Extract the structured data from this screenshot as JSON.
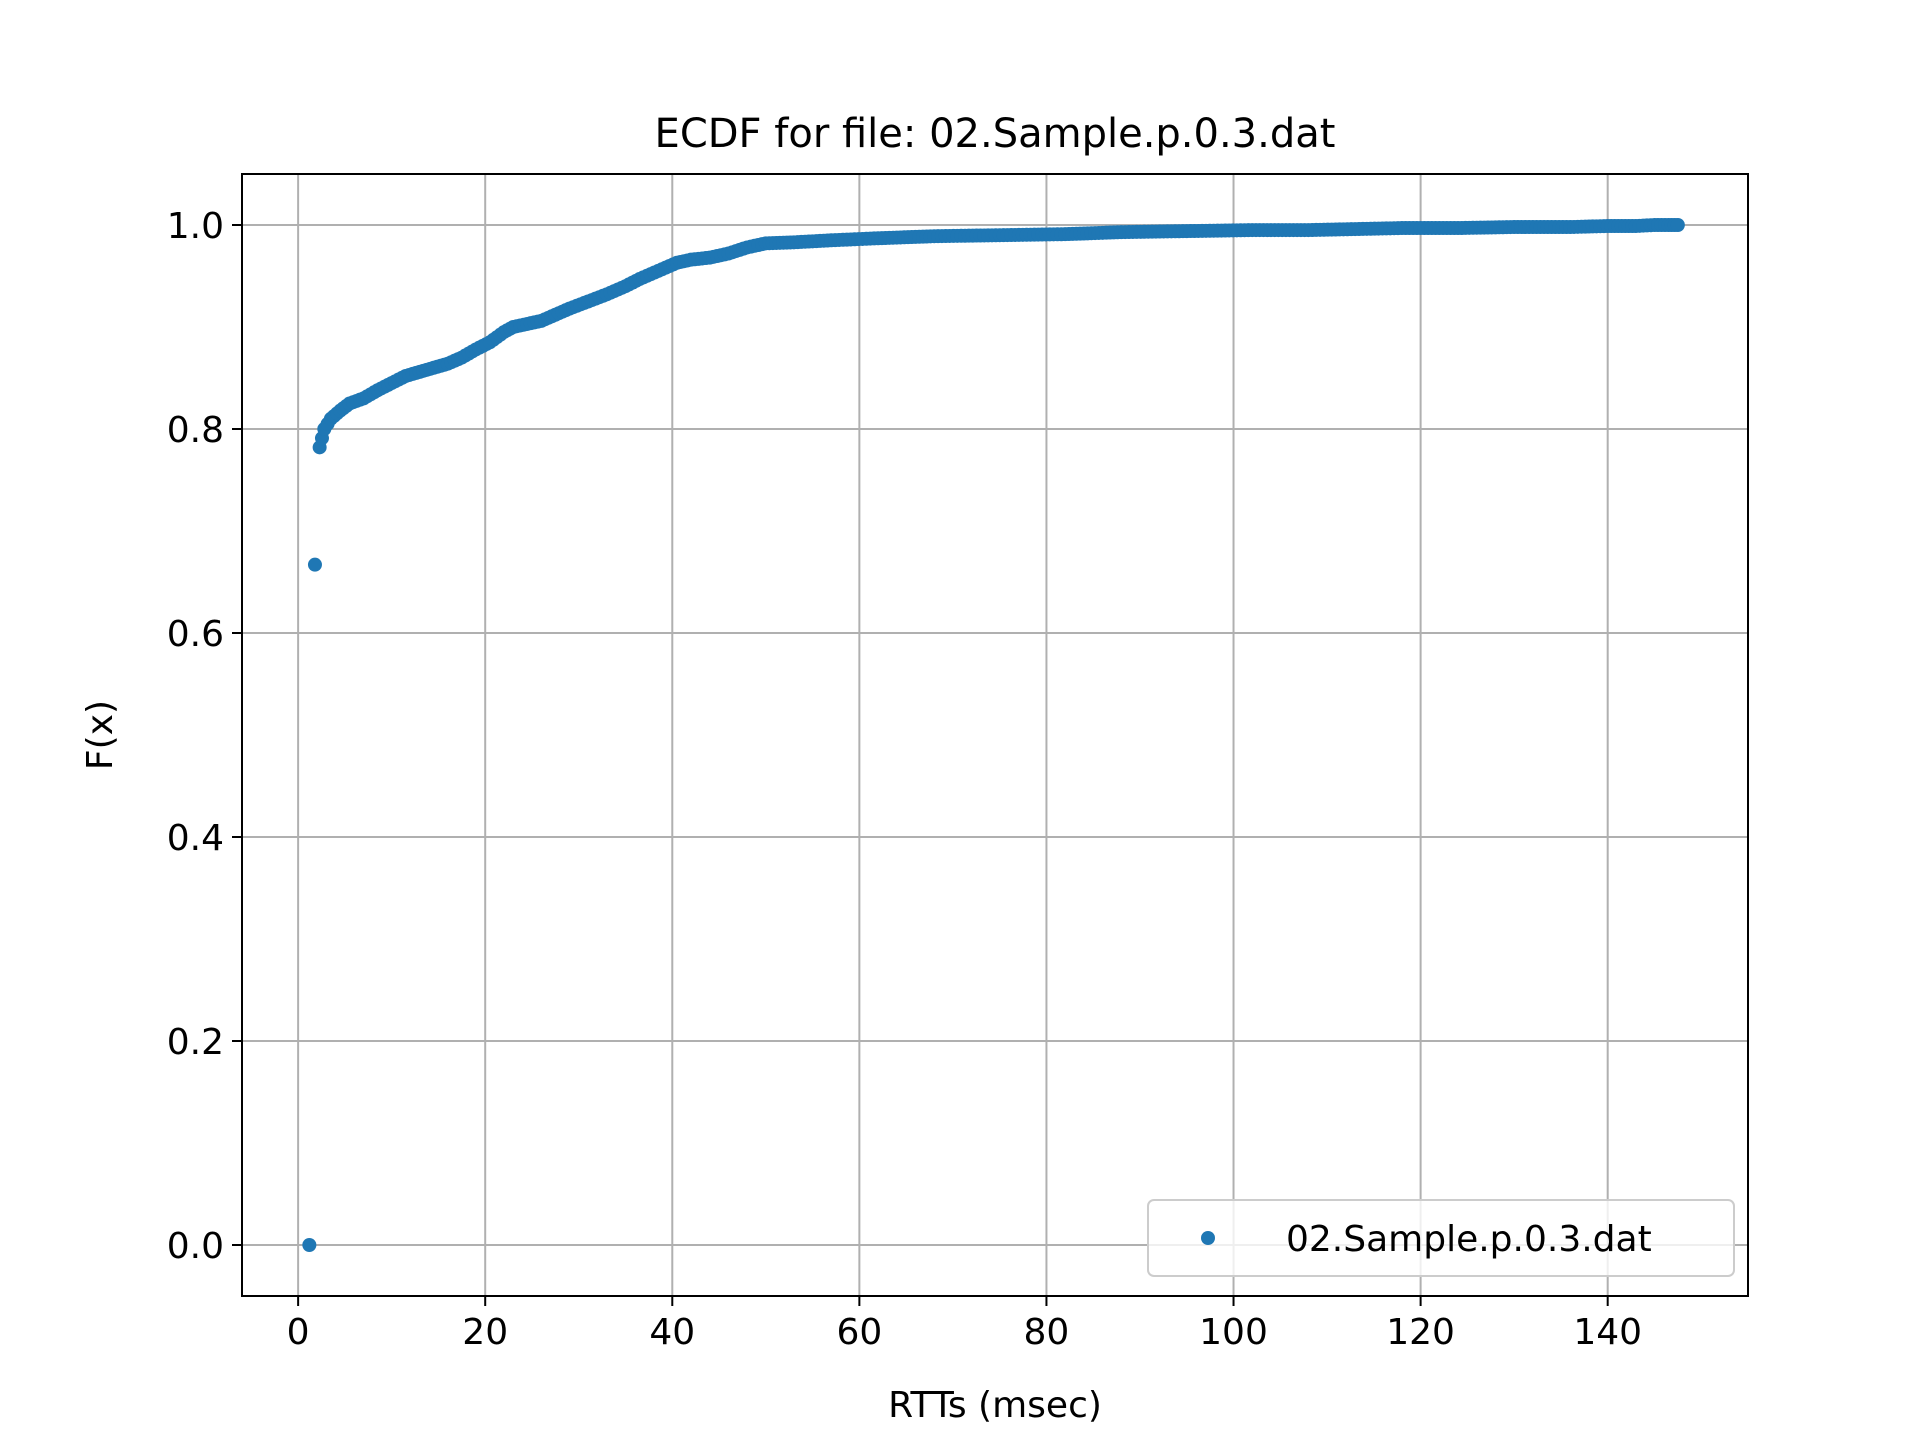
{
  "chart_data": {
    "type": "scatter",
    "title": "ECDF for file: 02.Sample.p.0.3.dat",
    "xlabel": "RTTs (msec)",
    "ylabel": "F(x)",
    "xlim": [
      -6,
      155
    ],
    "ylim": [
      -0.05,
      1.05
    ],
    "xticks": [
      0,
      20,
      40,
      60,
      80,
      100,
      120,
      140
    ],
    "yticks": [
      0.0,
      0.2,
      0.4,
      0.6,
      0.8,
      1.0
    ],
    "xtick_labels": [
      "0",
      "20",
      "40",
      "60",
      "80",
      "100",
      "120",
      "140"
    ],
    "ytick_labels": [
      "0.0",
      "0.2",
      "0.4",
      "0.6",
      "0.8",
      "1.0"
    ],
    "grid": true,
    "legend_position": "lower-right",
    "series": [
      {
        "name": "02.Sample.p.0.3.dat",
        "color": "#1f77b4",
        "x": [
          1.2,
          1.8,
          2.3,
          2.8,
          3.5,
          4.5,
          5.5,
          7.0,
          8.5,
          10.0,
          11.5,
          13.0,
          14.5,
          16.0,
          17.5,
          19.0,
          20.5,
          22.0,
          23.0,
          24.5,
          26.0,
          27.5,
          29.0,
          31.0,
          33.0,
          35.0,
          36.5,
          38.5,
          40.5,
          42.0,
          44.0,
          46.0,
          48.0,
          50.0,
          53.0,
          57.0,
          62.0,
          68.0,
          75.0,
          82.0,
          88.0,
          95.0,
          102.0,
          108.0,
          113.0,
          118.0,
          124.0,
          130.0,
          136.0,
          140.0,
          143.0,
          145.0,
          146.5,
          147.5
        ],
        "y": [
          0.0,
          0.667,
          0.782,
          0.8,
          0.81,
          0.818,
          0.825,
          0.83,
          0.838,
          0.845,
          0.852,
          0.856,
          0.86,
          0.864,
          0.87,
          0.878,
          0.885,
          0.895,
          0.9,
          0.903,
          0.906,
          0.912,
          0.918,
          0.925,
          0.932,
          0.94,
          0.947,
          0.955,
          0.963,
          0.966,
          0.968,
          0.972,
          0.978,
          0.982,
          0.983,
          0.985,
          0.987,
          0.989,
          0.99,
          0.991,
          0.993,
          0.994,
          0.995,
          0.995,
          0.996,
          0.997,
          0.997,
          0.998,
          0.998,
          0.999,
          0.999,
          1.0,
          1.0,
          1.0
        ]
      }
    ]
  }
}
